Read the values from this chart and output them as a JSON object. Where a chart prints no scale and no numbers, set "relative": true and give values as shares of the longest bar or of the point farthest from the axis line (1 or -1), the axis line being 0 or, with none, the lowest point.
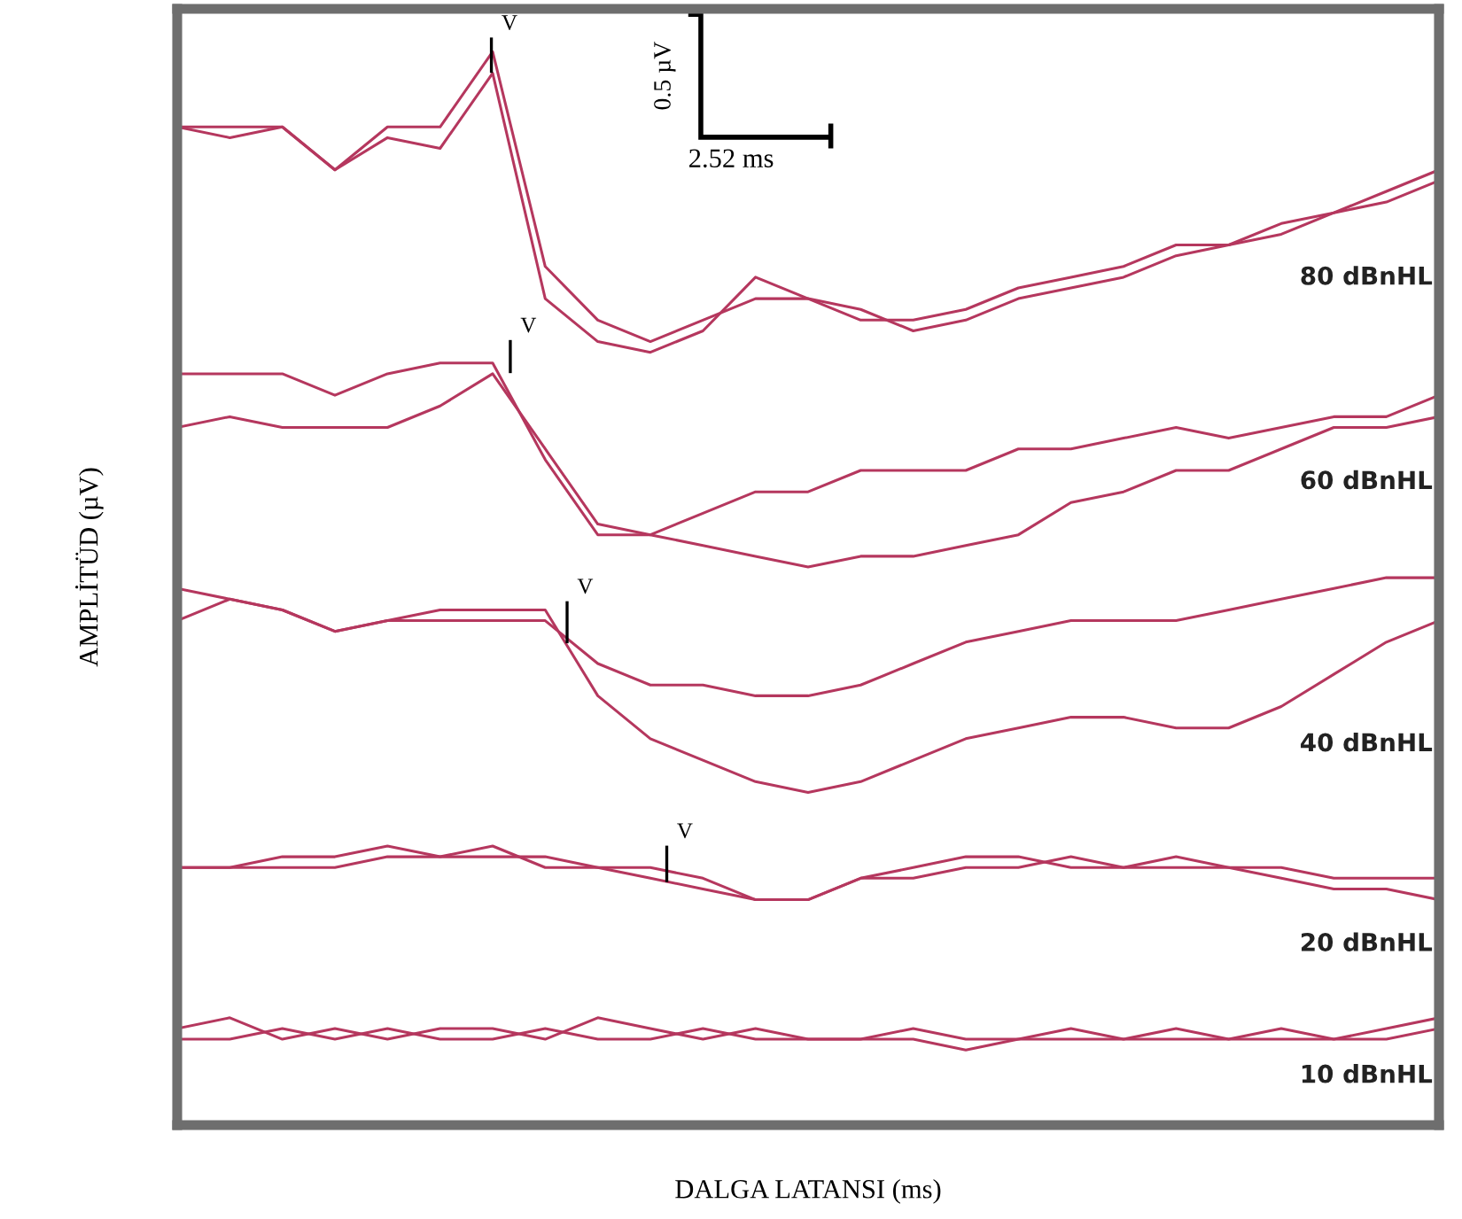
{
  "chart_data": {
    "type": "line",
    "relative": true,
    "xlabel": "DALGA LATANSI (ms)",
    "ylabel": "AMPLİTÜD (µV)",
    "tick_labels": false,
    "categories": [
      null,
      null,
      null,
      null,
      null,
      null,
      null,
      null,
      null,
      null,
      null,
      null,
      null,
      null,
      null,
      null,
      null,
      null,
      null,
      null,
      null,
      null,
      null,
      null,
      null
    ],
    "series": [
      {
        "color": "#b5375e",
        "values": [
          0.93,
          0.93,
          0.93,
          0.89,
          0.93,
          0.93,
          1.0,
          0.8,
          0.75,
          0.73,
          0.75,
          0.77,
          0.77,
          0.75,
          0.75,
          0.76,
          0.78,
          0.79,
          0.8,
          0.82,
          0.82,
          0.83,
          0.85,
          0.86,
          0.88
        ]
      },
      {
        "color": "#b5375e",
        "values": [
          0.93,
          0.92,
          0.93,
          0.89,
          0.92,
          0.91,
          0.98,
          0.77,
          0.73,
          0.72,
          0.74,
          0.79,
          0.77,
          0.76,
          0.74,
          0.75,
          0.77,
          0.78,
          0.79,
          0.81,
          0.82,
          0.84,
          0.85,
          0.87,
          0.89
        ]
      },
      {
        "color": "#b5375e",
        "values": [
          0.7,
          0.7,
          0.7,
          0.68,
          0.7,
          0.71,
          0.71,
          0.62,
          0.55,
          0.55,
          0.57,
          0.59,
          0.59,
          0.61,
          0.61,
          0.61,
          0.63,
          0.63,
          0.64,
          0.65,
          0.64,
          0.65,
          0.66,
          0.66,
          0.68
        ]
      },
      {
        "color": "#b5375e",
        "values": [
          0.65,
          0.66,
          0.65,
          0.65,
          0.65,
          0.67,
          0.7,
          0.63,
          0.56,
          0.55,
          0.54,
          0.53,
          0.52,
          0.53,
          0.53,
          0.54,
          0.55,
          0.58,
          0.59,
          0.61,
          0.61,
          0.63,
          0.65,
          0.65,
          0.66
        ]
      },
      {
        "color": "#b5375e",
        "values": [
          0.5,
          0.49,
          0.48,
          0.46,
          0.47,
          0.47,
          0.47,
          0.47,
          0.43,
          0.41,
          0.41,
          0.4,
          0.4,
          0.41,
          0.43,
          0.45,
          0.46,
          0.47,
          0.47,
          0.47,
          0.48,
          0.49,
          0.5,
          0.51,
          0.51
        ]
      },
      {
        "color": "#b5375e",
        "values": [
          0.47,
          0.49,
          0.48,
          0.46,
          0.47,
          0.48,
          0.48,
          0.48,
          0.4,
          0.36,
          0.34,
          0.32,
          0.31,
          0.32,
          0.34,
          0.36,
          0.37,
          0.38,
          0.38,
          0.37,
          0.37,
          0.39,
          0.42,
          0.45,
          0.47
        ]
      },
      {
        "color": "#b5375e",
        "values": [
          0.24,
          0.24,
          0.24,
          0.24,
          0.25,
          0.25,
          0.25,
          0.25,
          0.24,
          0.24,
          0.23,
          0.21,
          0.21,
          0.23,
          0.24,
          0.25,
          0.25,
          0.24,
          0.24,
          0.24,
          0.24,
          0.24,
          0.23,
          0.23,
          0.23
        ]
      },
      {
        "color": "#b5375e",
        "values": [
          0.24,
          0.24,
          0.25,
          0.25,
          0.26,
          0.25,
          0.26,
          0.24,
          0.24,
          0.23,
          0.22,
          0.21,
          0.21,
          0.23,
          0.23,
          0.24,
          0.24,
          0.25,
          0.24,
          0.25,
          0.24,
          0.23,
          0.22,
          0.22,
          0.21
        ]
      },
      {
        "color": "#b5375e",
        "values": [
          0.09,
          0.1,
          0.08,
          0.09,
          0.08,
          0.09,
          0.09,
          0.08,
          0.1,
          0.09,
          0.08,
          0.09,
          0.08,
          0.08,
          0.09,
          0.08,
          0.08,
          0.09,
          0.08,
          0.08,
          0.08,
          0.09,
          0.08,
          0.09,
          0.1
        ]
      },
      {
        "color": "#b5375e",
        "values": [
          0.08,
          0.08,
          0.09,
          0.08,
          0.09,
          0.08,
          0.08,
          0.09,
          0.08,
          0.08,
          0.09,
          0.08,
          0.08,
          0.08,
          0.08,
          0.07,
          0.08,
          0.08,
          0.08,
          0.09,
          0.08,
          0.08,
          0.08,
          0.08,
          0.09
        ]
      }
    ],
    "annotations": [
      "0.5 µV",
      "2.52 ms",
      "V",
      "V",
      "V",
      "V",
      "80 dBnHL",
      "60 dBnHL",
      "40 dBnHL",
      "20 dBnHL",
      "10 dBnHL"
    ]
  }
}
